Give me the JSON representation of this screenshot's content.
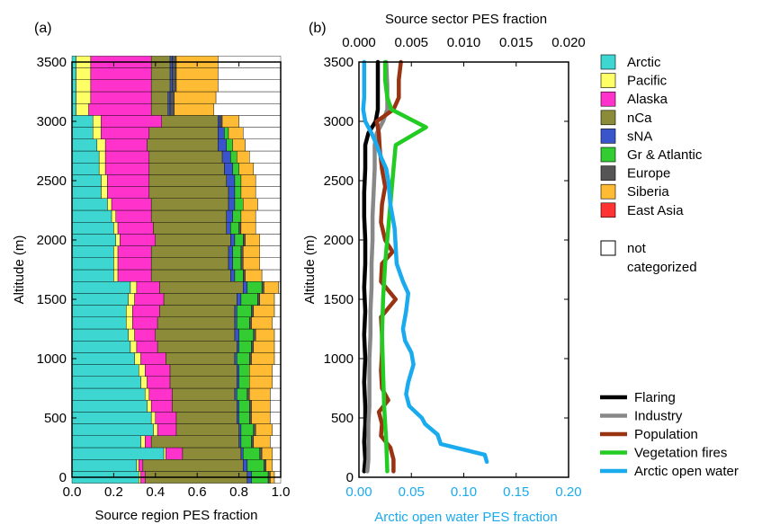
{
  "chart_data": [
    {
      "panel_label": "(a)",
      "type": "bar",
      "orientation": "horizontal-stacked",
      "xlabel": "Source region PES fraction",
      "ylabel": "Altitude (m)",
      "xlim": [
        0,
        1.0
      ],
      "ylim": [
        0,
        3500
      ],
      "xticks": [
        "0.0",
        "0.2",
        "0.4",
        "0.6",
        "0.8",
        "1.0"
      ],
      "yticks": [
        "0",
        "500",
        "1000",
        "1500",
        "2000",
        "2500",
        "3000",
        "3500"
      ],
      "altitudes": [
        0,
        100,
        200,
        300,
        400,
        500,
        600,
        700,
        800,
        900,
        1000,
        1100,
        1200,
        1300,
        1400,
        1500,
        1600,
        1700,
        1800,
        1900,
        2000,
        2100,
        2200,
        2300,
        2400,
        2500,
        2600,
        2700,
        2800,
        2900,
        3000,
        3100,
        3200,
        3300,
        3400,
        3500
      ],
      "bin_height": 100,
      "series": [
        {
          "name": "Arctic",
          "color": "#3dd6d0",
          "values": [
            0.32,
            0.31,
            0.44,
            0.33,
            0.39,
            0.38,
            0.36,
            0.35,
            0.33,
            0.32,
            0.3,
            0.28,
            0.27,
            0.26,
            0.26,
            0.27,
            0.28,
            0.2,
            0.2,
            0.2,
            0.21,
            0.2,
            0.19,
            0.17,
            0.14,
            0.14,
            0.13,
            0.13,
            0.12,
            0.1,
            0.1,
            0.02,
            0.02,
            0.02,
            0.02,
            0.02
          ]
        },
        {
          "name": "Pacific",
          "color": "#ffff66",
          "values": [
            0.01,
            0.01,
            0.01,
            0.02,
            0.02,
            0.02,
            0.02,
            0.02,
            0.03,
            0.03,
            0.03,
            0.03,
            0.03,
            0.03,
            0.03,
            0.03,
            0.03,
            0.02,
            0.02,
            0.02,
            0.02,
            0.02,
            0.02,
            0.02,
            0.03,
            0.03,
            0.03,
            0.03,
            0.04,
            0.04,
            0.04,
            0.06,
            0.07,
            0.07,
            0.07,
            0.07
          ]
        },
        {
          "name": "Alaska",
          "color": "#ff33cc",
          "values": [
            0.02,
            0.02,
            0.08,
            0.03,
            0.09,
            0.1,
            0.1,
            0.11,
            0.11,
            0.12,
            0.12,
            0.1,
            0.1,
            0.12,
            0.13,
            0.14,
            0.11,
            0.16,
            0.16,
            0.16,
            0.17,
            0.17,
            0.17,
            0.19,
            0.2,
            0.2,
            0.21,
            0.21,
            0.2,
            0.23,
            0.29,
            0.3,
            0.29,
            0.29,
            0.29,
            0.29
          ]
        },
        {
          "name": "nCa",
          "color": "#8b8b3a",
          "values": [
            0.49,
            0.48,
            0.28,
            0.42,
            0.3,
            0.29,
            0.31,
            0.3,
            0.32,
            0.32,
            0.33,
            0.38,
            0.38,
            0.37,
            0.36,
            0.35,
            0.4,
            0.38,
            0.37,
            0.37,
            0.36,
            0.35,
            0.36,
            0.37,
            0.38,
            0.37,
            0.36,
            0.35,
            0.34,
            0.33,
            0.27,
            0.08,
            0.08,
            0.09,
            0.09,
            0.09
          ]
        },
        {
          "name": "sNA",
          "color": "#3a55cc",
          "values": [
            0.02,
            0.02,
            0.01,
            0.01,
            0.01,
            0.01,
            0.01,
            0.01,
            0.01,
            0.01,
            0.01,
            0.01,
            0.02,
            0.01,
            0.01,
            0.02,
            0.02,
            0.02,
            0.02,
            0.02,
            0.02,
            0.02,
            0.03,
            0.03,
            0.03,
            0.04,
            0.04,
            0.04,
            0.04,
            0.03,
            0.01,
            0.01,
            0.01,
            0.01,
            0.01,
            0.01
          ]
        },
        {
          "name": "Gr & Atlantic",
          "color": "#33cc33",
          "values": [
            0.08,
            0.08,
            0.08,
            0.05,
            0.06,
            0.05,
            0.05,
            0.05,
            0.05,
            0.05,
            0.06,
            0.06,
            0.07,
            0.06,
            0.07,
            0.08,
            0.07,
            0.04,
            0.04,
            0.04,
            0.04,
            0.04,
            0.04,
            0.04,
            0.03,
            0.03,
            0.03,
            0.03,
            0.03,
            0.02,
            0.0,
            0.0,
            0.0,
            0.0,
            0.0,
            0.0
          ]
        },
        {
          "name": "Europe",
          "color": "#555555",
          "values": [
            0.01,
            0.01,
            0.01,
            0.01,
            0.01,
            0.01,
            0.01,
            0.01,
            0.0,
            0.0,
            0.01,
            0.01,
            0.01,
            0.01,
            0.01,
            0.01,
            0.01,
            0.01,
            0.01,
            0.01,
            0.01,
            0.01,
            0.0,
            0.0,
            0.0,
            0.0,
            0.0,
            0.0,
            0.0,
            0.0,
            0.01,
            0.02,
            0.02,
            0.02,
            0.02,
            0.02
          ]
        },
        {
          "name": "Siberia",
          "color": "#ffbb33",
          "values": [
            0.02,
            0.03,
            0.05,
            0.08,
            0.08,
            0.09,
            0.09,
            0.1,
            0.11,
            0.11,
            0.11,
            0.1,
            0.09,
            0.1,
            0.1,
            0.07,
            0.07,
            0.08,
            0.08,
            0.08,
            0.07,
            0.07,
            0.07,
            0.07,
            0.07,
            0.07,
            0.07,
            0.06,
            0.06,
            0.07,
            0.08,
            0.19,
            0.2,
            0.2,
            0.2,
            0.2
          ]
        },
        {
          "name": "East Asia",
          "color": "#ff3333",
          "values": [
            0.0,
            0.0,
            0.0,
            0.0,
            0.0,
            0.0,
            0.0,
            0.0,
            0.0,
            0.0,
            0.0,
            0.0,
            0.0,
            0.0,
            0.0,
            0.0,
            0.0,
            0.0,
            0.0,
            0.0,
            0.0,
            0.0,
            0.0,
            0.0,
            0.0,
            0.0,
            0.0,
            0.0,
            0.0,
            0.0,
            0.0,
            0.0,
            0.0,
            0.0,
            0.0,
            0.0
          ]
        },
        {
          "name": "not categorized",
          "color": "#ffffff",
          "values": [
            0.03,
            0.04,
            0.04,
            0.05,
            0.04,
            0.05,
            0.05,
            0.05,
            0.04,
            0.04,
            0.03,
            0.03,
            0.03,
            0.04,
            0.03,
            0.03,
            0.01,
            0.09,
            0.1,
            0.1,
            0.1,
            0.12,
            0.12,
            0.11,
            0.12,
            0.12,
            0.13,
            0.15,
            0.17,
            0.18,
            0.2,
            0.32,
            0.31,
            0.3,
            0.3,
            0.3
          ]
        }
      ],
      "legend_labels": [
        "Arctic",
        "Pacific",
        "Alaska",
        "nCa",
        "sNA",
        "Gr & Atlantic",
        "Europe",
        "Siberia",
        "East Asia"
      ],
      "legend_extra": {
        "line1": "not",
        "line2": "categorized"
      }
    },
    {
      "panel_label": "(b)",
      "type": "line",
      "ylabel": "Altitude (m)",
      "ylim": [
        0,
        3500
      ],
      "yticks": [
        "0",
        "500",
        "1000",
        "1500",
        "2000",
        "2500",
        "3000",
        "3500"
      ],
      "top_axis": {
        "label": "Source sector PES fraction",
        "lim": [
          0,
          0.02
        ],
        "ticks": [
          "0.000",
          "0.005",
          "0.010",
          "0.015",
          "0.020"
        ]
      },
      "bottom_axis": {
        "label": "Arctic open water PES fraction",
        "lim": [
          0,
          0.2
        ],
        "ticks": [
          "0.00",
          "0.05",
          "0.10",
          "0.15",
          "0.20"
        ],
        "color": "#1aaaee"
      },
      "series": [
        {
          "name": "Flaring",
          "color": "#000000",
          "axis": "top",
          "points": [
            [
              0.0005,
              50
            ],
            [
              0.0006,
              150
            ],
            [
              0.0005,
              300
            ],
            [
              0.0006,
              450
            ],
            [
              0.0006,
              600
            ],
            [
              0.0005,
              800
            ],
            [
              0.0006,
              1000
            ],
            [
              0.0005,
              1200
            ],
            [
              0.0006,
              1400
            ],
            [
              0.0005,
              1600
            ],
            [
              0.0006,
              1800
            ],
            [
              0.0006,
              2000
            ],
            [
              0.0005,
              2200
            ],
            [
              0.0005,
              2400
            ],
            [
              0.0006,
              2600
            ],
            [
              0.0006,
              2800
            ],
            [
              0.0009,
              2900
            ],
            [
              0.0016,
              3000
            ],
            [
              0.0018,
              3100
            ],
            [
              0.0018,
              3300
            ],
            [
              0.0018,
              3500
            ]
          ]
        },
        {
          "name": "Industry",
          "color": "#888888",
          "axis": "top",
          "points": [
            [
              0.0008,
              50
            ],
            [
              0.0009,
              150
            ],
            [
              0.0009,
              300
            ],
            [
              0.0009,
              450
            ],
            [
              0.001,
              600
            ],
            [
              0.001,
              800
            ],
            [
              0.001,
              1000
            ],
            [
              0.0011,
              1200
            ],
            [
              0.0011,
              1400
            ],
            [
              0.0012,
              1600
            ],
            [
              0.0012,
              1800
            ],
            [
              0.0013,
              2000
            ],
            [
              0.0013,
              2200
            ],
            [
              0.0014,
              2400
            ],
            [
              0.0015,
              2600
            ],
            [
              0.0015,
              2800
            ],
            [
              0.0017,
              2900
            ],
            [
              0.0023,
              3000
            ],
            [
              0.0027,
              3100
            ],
            [
              0.0027,
              3300
            ],
            [
              0.0026,
              3500
            ]
          ]
        },
        {
          "name": "Population",
          "color": "#993311",
          "axis": "top",
          "points": [
            [
              0.0033,
              50
            ],
            [
              0.0033,
              150
            ],
            [
              0.003,
              250
            ],
            [
              0.0021,
              350
            ],
            [
              0.0022,
              450
            ],
            [
              0.0019,
              550
            ],
            [
              0.0028,
              650
            ],
            [
              0.0022,
              750
            ],
            [
              0.0021,
              900
            ],
            [
              0.0022,
              1050
            ],
            [
              0.0022,
              1200
            ],
            [
              0.0021,
              1350
            ],
            [
              0.0035,
              1500
            ],
            [
              0.0021,
              1650
            ],
            [
              0.0022,
              1800
            ],
            [
              0.0032,
              1900
            ],
            [
              0.0025,
              2000
            ],
            [
              0.0021,
              2150
            ],
            [
              0.0022,
              2300
            ],
            [
              0.0025,
              2450
            ],
            [
              0.0022,
              2600
            ],
            [
              0.002,
              2750
            ],
            [
              0.0019,
              2900
            ],
            [
              0.0017,
              3000
            ],
            [
              0.0033,
              3100
            ],
            [
              0.0038,
              3200
            ],
            [
              0.0038,
              3350
            ],
            [
              0.004,
              3500
            ]
          ]
        },
        {
          "name": "Vegetation fires",
          "color": "#22cc22",
          "axis": "top",
          "points": [
            [
              0.0027,
              50
            ],
            [
              0.0026,
              300
            ],
            [
              0.0024,
              600
            ],
            [
              0.0023,
              900
            ],
            [
              0.0022,
              1200
            ],
            [
              0.0023,
              1500
            ],
            [
              0.0025,
              1800
            ],
            [
              0.0028,
              2100
            ],
            [
              0.0031,
              2400
            ],
            [
              0.0033,
              2600
            ],
            [
              0.0035,
              2800
            ],
            [
              0.0064,
              2950
            ],
            [
              0.0031,
              3100
            ],
            [
              0.0027,
              3200
            ],
            [
              0.0025,
              3350
            ],
            [
              0.0025,
              3500
            ]
          ]
        },
        {
          "name": "Arctic open water",
          "color": "#1aaaee",
          "axis": "bottom",
          "points": [
            [
              0.122,
              130
            ],
            [
              0.12,
              190
            ],
            [
              0.078,
              280
            ],
            [
              0.075,
              360
            ],
            [
              0.063,
              450
            ],
            [
              0.06,
              500
            ],
            [
              0.048,
              600
            ],
            [
              0.045,
              700
            ],
            [
              0.047,
              800
            ],
            [
              0.052,
              950
            ],
            [
              0.05,
              1050
            ],
            [
              0.044,
              1150
            ],
            [
              0.042,
              1250
            ],
            [
              0.045,
              1400
            ],
            [
              0.047,
              1550
            ],
            [
              0.042,
              1650
            ],
            [
              0.036,
              1800
            ],
            [
              0.035,
              1950
            ],
            [
              0.034,
              2100
            ],
            [
              0.03,
              2300
            ],
            [
              0.028,
              2500
            ],
            [
              0.026,
              2600
            ],
            [
              0.021,
              2700
            ],
            [
              0.017,
              2800
            ],
            [
              0.012,
              2900
            ],
            [
              0.006,
              3000
            ],
            [
              0.004,
              3100
            ],
            [
              0.005,
              3200
            ],
            [
              0.005,
              3350
            ],
            [
              0.005,
              3500
            ]
          ]
        }
      ],
      "legend_labels": [
        "Flaring",
        "Industry",
        "Population",
        "Vegetation fires",
        "Arctic open water"
      ]
    }
  ]
}
